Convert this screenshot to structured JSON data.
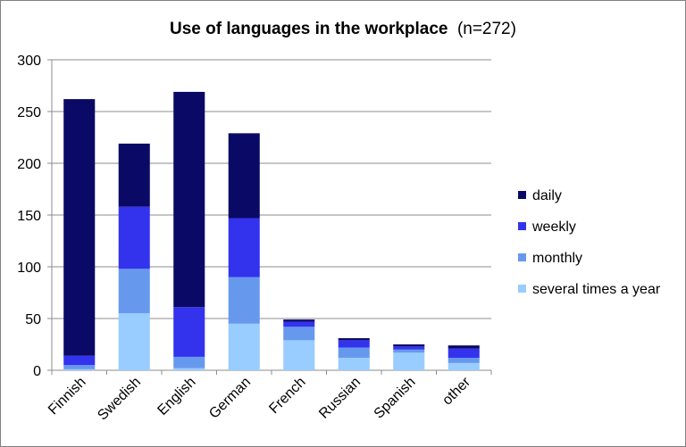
{
  "chart_data": {
    "type": "bar",
    "stacked": true,
    "title": "Use of languages in the workplace",
    "subtitle": "(n=272)",
    "xlabel": "",
    "ylabel": "",
    "ylim": [
      0,
      300
    ],
    "yticks": [
      0,
      50,
      100,
      150,
      200,
      250,
      300
    ],
    "grid": true,
    "legend_position": "right",
    "categories": [
      "Finnish",
      "Swedish",
      "English",
      "German",
      "French",
      "Russian",
      "Spanish",
      "other"
    ],
    "series": [
      {
        "name": "several times a year",
        "color": "#99ccff",
        "values": [
          1,
          55,
          2,
          45,
          29,
          12,
          17,
          7
        ]
      },
      {
        "name": "monthly",
        "color": "#6699ee",
        "values": [
          4,
          43,
          11,
          45,
          13,
          10,
          3,
          5
        ]
      },
      {
        "name": "weekly",
        "color": "#3333ee",
        "values": [
          9,
          60,
          48,
          57,
          5,
          7,
          3,
          9
        ]
      },
      {
        "name": "daily",
        "color": "#0a0a66",
        "values": [
          248,
          61,
          208,
          82,
          2,
          2,
          2,
          3
        ]
      }
    ],
    "legend_order": [
      3,
      2,
      1,
      0
    ]
  }
}
